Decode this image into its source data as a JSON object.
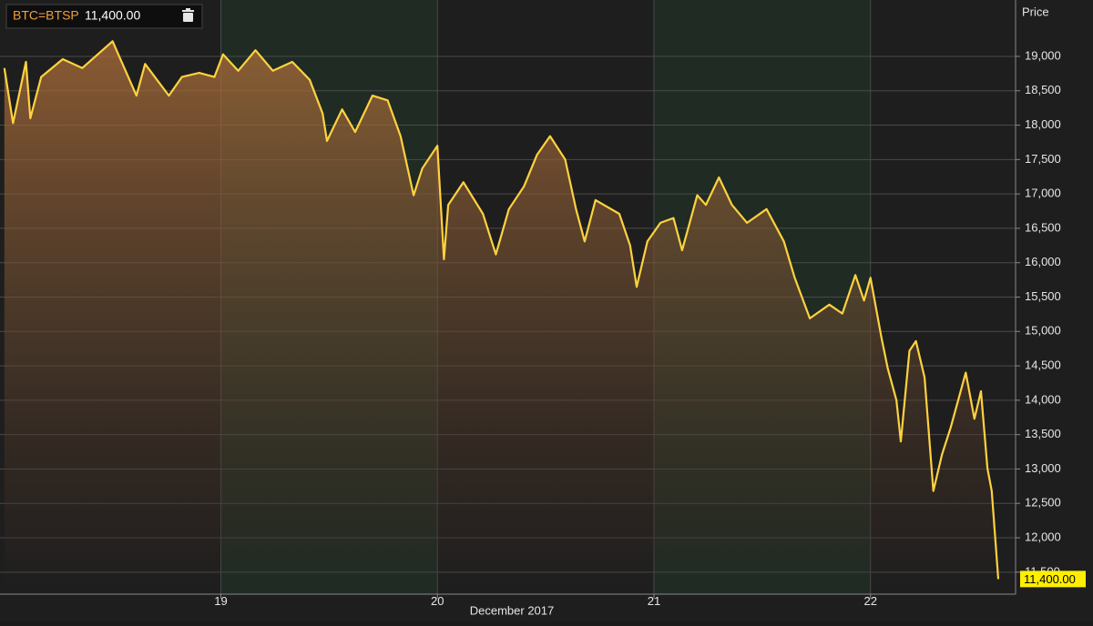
{
  "chart_data": {
    "type": "line",
    "y_axis_title": "Price",
    "x_axis_label": "December 2017",
    "x": [
      18.0,
      18.04,
      18.1,
      18.12,
      18.17,
      18.27,
      18.36,
      18.5,
      18.61,
      18.65,
      18.76,
      18.82,
      18.9,
      18.97,
      19.01,
      19.08,
      19.16,
      19.24,
      19.33,
      19.41,
      19.47,
      19.49,
      19.56,
      19.62,
      19.7,
      19.77,
      19.83,
      19.89,
      19.93,
      20.0,
      20.03,
      20.05,
      20.12,
      20.21,
      20.27,
      20.33,
      20.4,
      20.46,
      20.52,
      20.59,
      20.64,
      20.68,
      20.73,
      20.84,
      20.89,
      20.92,
      20.97,
      21.03,
      21.09,
      21.13,
      21.2,
      21.24,
      21.3,
      21.36,
      21.43,
      21.52,
      21.6,
      21.65,
      21.72,
      21.81,
      21.87,
      21.93,
      21.97,
      22.0,
      22.05,
      22.08,
      22.12,
      22.14,
      22.18,
      22.21,
      22.25,
      22.29,
      22.33,
      22.37,
      22.44,
      22.48,
      22.51,
      22.54,
      22.56,
      22.59
    ],
    "series": [
      {
        "name": "BTC=BTSP",
        "color": "#ffd23f",
        "values": [
          18830,
          18030,
          18920,
          18100,
          18700,
          18960,
          18830,
          19220,
          18430,
          18890,
          18430,
          18700,
          18760,
          18700,
          19030,
          18790,
          19090,
          18790,
          18920,
          18660,
          18170,
          17770,
          18230,
          17900,
          18430,
          18360,
          17840,
          16980,
          17370,
          17700,
          16050,
          16840,
          17170,
          16710,
          16120,
          16780,
          17110,
          17570,
          17840,
          17500,
          16780,
          16310,
          16910,
          16710,
          16250,
          15650,
          16310,
          16580,
          16650,
          16180,
          16980,
          16840,
          17240,
          16840,
          16580,
          16780,
          16310,
          15780,
          15190,
          15390,
          15260,
          15820,
          15450,
          15780,
          14920,
          14460,
          14000,
          13400,
          14720,
          14860,
          14330,
          12680,
          13210,
          13600,
          14400,
          13730,
          14130,
          13010,
          12680,
          11400
        ]
      }
    ],
    "last_price": {
      "value": 11400,
      "label": "11,400.00"
    },
    "xlim": [
      17.98,
      22.67
    ],
    "xticks": [
      19,
      20,
      21,
      22
    ],
    "ylim": [
      11180,
      19820
    ],
    "yticks": [
      {
        "value": 11500,
        "label": "11,500"
      },
      {
        "value": 12000,
        "label": "12,000"
      },
      {
        "value": 12500,
        "label": "12,500"
      },
      {
        "value": 13000,
        "label": "13,000"
      },
      {
        "value": 13500,
        "label": "13,500"
      },
      {
        "value": 14000,
        "label": "14,000"
      },
      {
        "value": 14500,
        "label": "14,500"
      },
      {
        "value": 15000,
        "label": "15,000"
      },
      {
        "value": 15500,
        "label": "15,500"
      },
      {
        "value": 16000,
        "label": "16,000"
      },
      {
        "value": 16500,
        "label": "16,500"
      },
      {
        "value": 17000,
        "label": "17,000"
      },
      {
        "value": 17500,
        "label": "17,500"
      },
      {
        "value": 18000,
        "label": "18,000"
      },
      {
        "value": 18500,
        "label": "18,500"
      },
      {
        "value": 19000,
        "label": "19,000"
      }
    ],
    "grid": true
  }
}
